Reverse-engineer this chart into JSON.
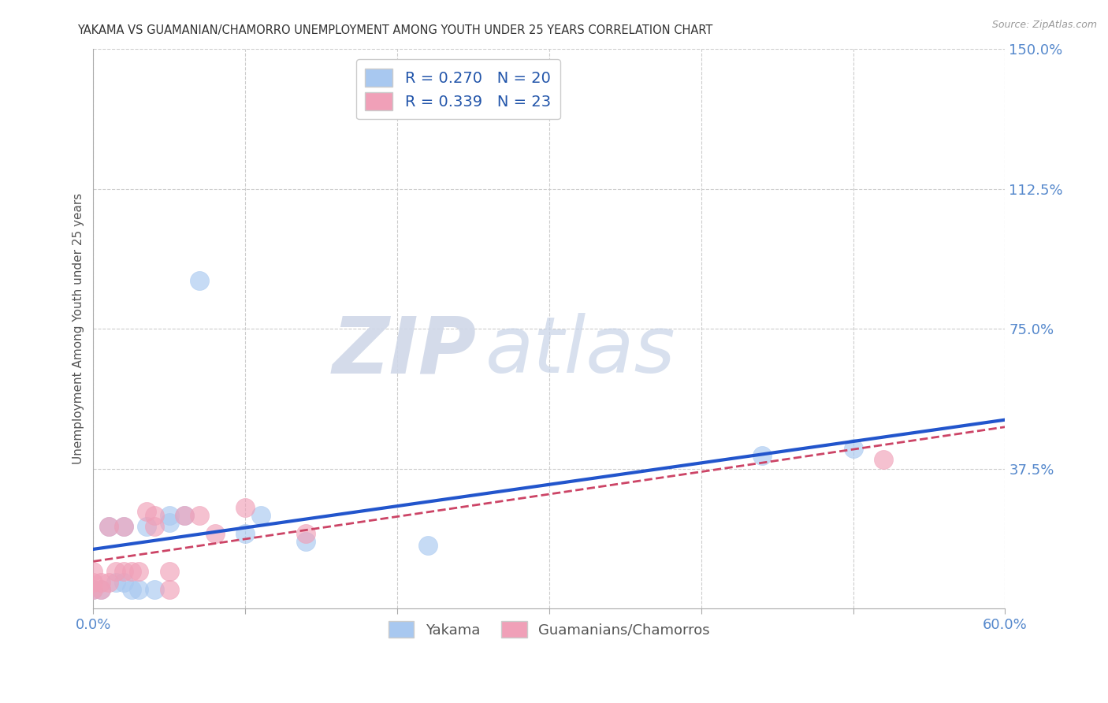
{
  "title": "YAKAMA VS GUAMANIAN/CHAMORRO UNEMPLOYMENT AMONG YOUTH UNDER 25 YEARS CORRELATION CHART",
  "source": "Source: ZipAtlas.com",
  "xlabel_ticks_labels": [
    "0.0%",
    "",
    "",
    "",
    "",
    "60.0%"
  ],
  "xlabel_vals": [
    0.0,
    0.1,
    0.2,
    0.3,
    0.4,
    0.5,
    0.6
  ],
  "xlabel_show": [
    0.0,
    0.6
  ],
  "ylabel_ticks_right": [
    "150.0%",
    "112.5%",
    "75.0%",
    "37.5%"
  ],
  "ylabel_vals_right": [
    1.5,
    1.125,
    0.75,
    0.375
  ],
  "ylabel_label": "Unemployment Among Youth under 25 years",
  "legend_labels": [
    "Yakama",
    "Guamanians/Chamorros"
  ],
  "R_yakama": 0.27,
  "N_yakama": 20,
  "R_guam": 0.339,
  "N_guam": 23,
  "color_yakama": "#a8c8f0",
  "color_guam": "#f0a0b8",
  "color_trendline_yakama": "#2255cc",
  "color_trendline_guam": "#cc4466",
  "watermark_zip": "ZIP",
  "watermark_atlas": "atlas",
  "xlim": [
    0.0,
    0.6
  ],
  "ylim": [
    0.0,
    1.5
  ],
  "yakama_x": [
    0.0,
    0.005,
    0.01,
    0.015,
    0.02,
    0.02,
    0.025,
    0.03,
    0.035,
    0.04,
    0.05,
    0.05,
    0.06,
    0.07,
    0.1,
    0.11,
    0.14,
    0.22,
    0.44,
    0.5
  ],
  "yakama_y": [
    0.05,
    0.05,
    0.22,
    0.07,
    0.07,
    0.22,
    0.05,
    0.05,
    0.22,
    0.05,
    0.23,
    0.25,
    0.25,
    0.88,
    0.2,
    0.25,
    0.18,
    0.17,
    0.41,
    0.43
  ],
  "guam_x": [
    0.0,
    0.0,
    0.0,
    0.005,
    0.005,
    0.01,
    0.01,
    0.015,
    0.02,
    0.02,
    0.025,
    0.03,
    0.035,
    0.04,
    0.04,
    0.05,
    0.05,
    0.06,
    0.07,
    0.08,
    0.1,
    0.14,
    0.52
  ],
  "guam_y": [
    0.05,
    0.07,
    0.1,
    0.05,
    0.07,
    0.07,
    0.22,
    0.1,
    0.1,
    0.22,
    0.1,
    0.1,
    0.26,
    0.22,
    0.25,
    0.05,
    0.1,
    0.25,
    0.25,
    0.2,
    0.27,
    0.2,
    0.4
  ],
  "background_color": "#ffffff",
  "grid_color": "#cccccc",
  "title_color": "#333333",
  "axis_label_color": "#555555",
  "right_tick_color": "#5588cc",
  "bottom_tick_color": "#5588cc"
}
